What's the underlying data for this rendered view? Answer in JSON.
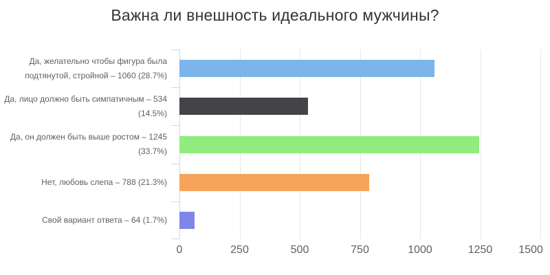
{
  "title": "Важна ли внешность идеального мужчины?",
  "chart_data": {
    "type": "bar",
    "orientation": "horizontal",
    "title": "Важна ли внешность идеального мужчины?",
    "categories": [
      "Да, желательно чтобы фигура была подтянутой, стройной",
      "Да, лицо должно быть симпатичным",
      "Да, он должен быть выше ростом",
      "Нет, любовь слепа",
      "Свой вариант ответа"
    ],
    "values": [
      1060,
      534,
      1245,
      788,
      64
    ],
    "percentages": [
      "28.7%",
      "14.5%",
      "33.7%",
      "21.3%",
      "1.7%"
    ],
    "label_lines": [
      [
        "Да, желательно чтобы фигура была",
        "подтянутой, стройной – 1060 (28.7%)"
      ],
      [
        "Да, лицо должно быть симпатичным – 534",
        "(14.5%)"
      ],
      [
        "Да, он должен быть выше ростом – 1245",
        "(33.7%)"
      ],
      [
        "Нет, любовь слепа – 788 (21.3%)"
      ],
      [
        "Свой вариант ответа – 64 (1.7%)"
      ]
    ],
    "bar_colors": [
      "#7cb5ec",
      "#434348",
      "#90ed7d",
      "#f7a35c",
      "#8085e9"
    ],
    "xlim": [
      0,
      1500
    ],
    "x_ticks": [
      "0",
      "250",
      "500",
      "750",
      "1000",
      "1250",
      "1500"
    ],
    "grid": true,
    "legend": false
  },
  "colors": {
    "background": "#ffffff",
    "title_text": "#333333",
    "label_text": "#606060",
    "gridline": "#e6e6e6",
    "axis_line": "#ccd6eb"
  }
}
